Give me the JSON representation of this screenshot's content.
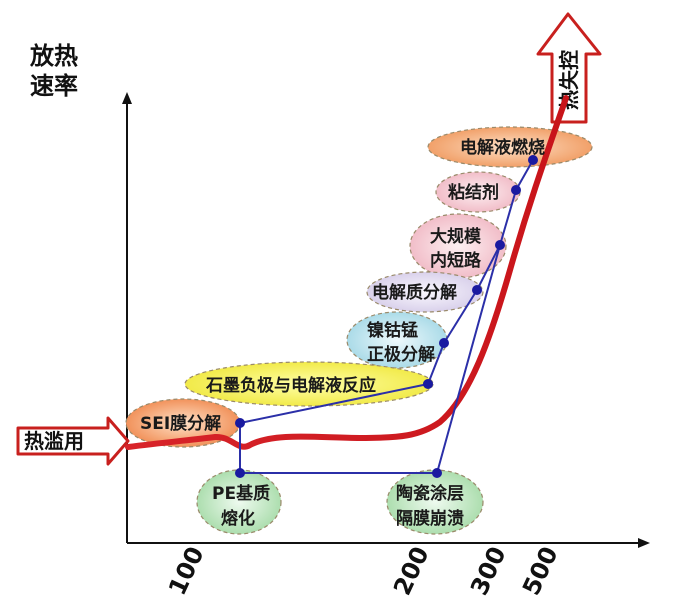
{
  "axis": {
    "y_label_line1": "放热",
    "y_label_line2": "速率",
    "x_ticks": [
      "100",
      "200",
      "300",
      "500"
    ]
  },
  "start_arrow": "热滥用",
  "end_arrow": "热失控",
  "stages": {
    "sei": "SEI膜分解",
    "pe_line1": "PE基质",
    "pe_line2": "熔化",
    "graphite": "石墨负极与电解液反应",
    "ceramic_line1": "陶瓷涂层",
    "ceramic_line2": "隔膜崩溃",
    "nca_line1": "镍钴锰",
    "nca_line2": "正极分解",
    "electrolyte_decomp": "电解质分解",
    "short_line1": "大规模",
    "short_line2": "内短路",
    "binder": "粘结剂",
    "combustion": "电解液燃烧"
  },
  "colors": {
    "curve": "#d9201e",
    "connector": "#2b2fa8",
    "dot": "#1a1aa0",
    "arrow_outline": "#c8201e",
    "sei": "#f08a50",
    "pe": "#9fd7a0",
    "graphite": "#f2ee4a",
    "ceramic": "#a8dcb5",
    "nca": "#a9dbe8",
    "electrolyte_decomp": "#dcd4ec",
    "short": "#f4c4cf",
    "binder": "#f4c2cc",
    "combustion": "#f0a070"
  }
}
